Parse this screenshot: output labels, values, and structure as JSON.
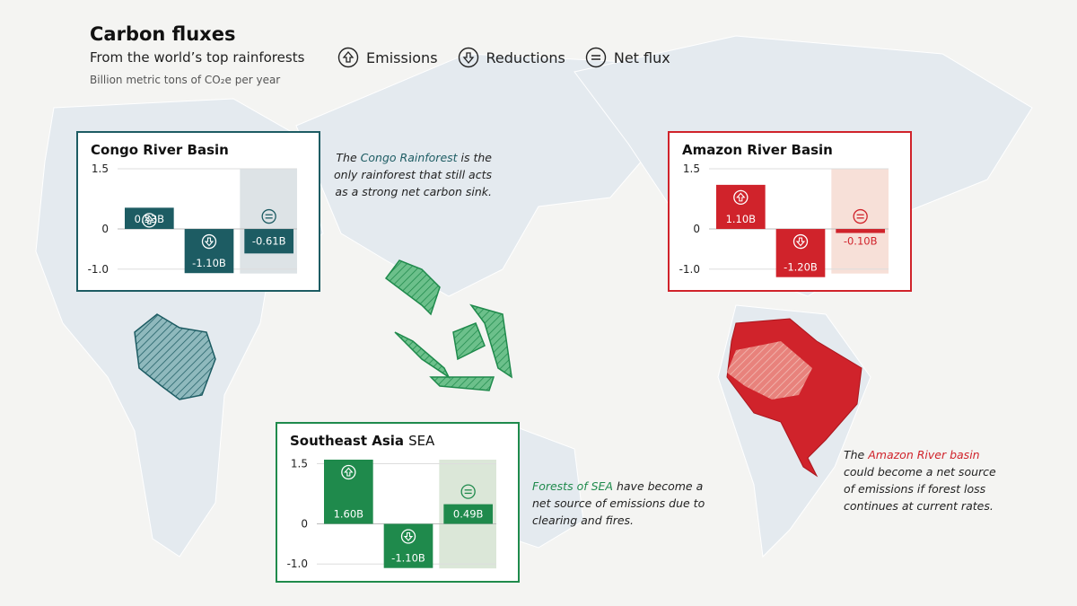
{
  "header": {
    "title": "Carbon fluxes",
    "subtitle": "From the world’s top rainforests",
    "unit": "Billion metric tons of CO₂e per year"
  },
  "legend": [
    "Emissions",
    "Reductions",
    "Net flux"
  ],
  "chart_data": [
    {
      "type": "bar",
      "title": "Congo River Basin",
      "color": "#1d5c63",
      "band_color": "#dde3e6",
      "values": [
        0.53,
        -1.1,
        -0.61
      ],
      "value_labels": [
        "0.53B",
        "-1.10B",
        "-0.61B"
      ],
      "ylim": [
        -1.2,
        1.5
      ],
      "yticks": [
        1.5,
        0,
        {
          "value": -1,
          "label": "-1.0"
        }
      ],
      "grid": true,
      "annotation": [
        "The ",
        "Congo Rainforest",
        " is the only rainforest that still acts as a strong net carbon sink."
      ]
    },
    {
      "type": "bar",
      "title": "Amazon River Basin",
      "color": "#d0232b",
      "band_color": "#f7e0d8",
      "values": [
        1.1,
        -1.2,
        -0.1
      ],
      "value_labels": [
        "1.10B",
        "-1.20B",
        "-0.10B"
      ],
      "ylim": [
        -1.2,
        1.5
      ],
      "yticks": [
        1.5,
        0,
        {
          "value": -1,
          "label": "-1.0"
        }
      ],
      "grid": true,
      "annotation": [
        "The ",
        "Amazon River basin",
        " could become a net source of emissions if forest loss continues at current rates."
      ]
    },
    {
      "type": "bar",
      "title": "Southeast Asia",
      "abbreviation": "SEA",
      "color": "#1f8a4c",
      "band_color": "#dbe7d8",
      "values": [
        1.6,
        -1.1,
        0.49
      ],
      "value_labels": [
        "1.60B",
        "-1.10B",
        "0.49B"
      ],
      "ylim": [
        -1.2,
        1.6
      ],
      "yticks": [
        1.5,
        0,
        {
          "value": -1,
          "label": "-1.0"
        }
      ],
      "grid": true,
      "annotation": [
        "",
        "Forests of SEA",
        " have become a net source of emissions due to clearing and fires."
      ]
    }
  ]
}
